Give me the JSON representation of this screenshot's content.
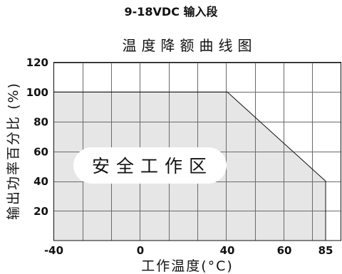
{
  "page": {
    "heading": "9-18VDC 输入段"
  },
  "chart_data": {
    "type": "area",
    "title": "温度降额曲线图",
    "xlabel": "工作温度(°C)",
    "ylabel": "输出功率百分比 (%)",
    "x_ticks": [
      -40,
      0,
      40,
      60,
      85
    ],
    "y_ticks": [
      20,
      40,
      60,
      80,
      100,
      120
    ],
    "ylim": [
      0,
      120
    ],
    "grid": true,
    "series": [
      {
        "x": [
          -40,
          40,
          85
        ],
        "y": [
          100,
          100,
          40
        ]
      }
    ],
    "annotation": "安全工作区",
    "colors": {
      "area_fill": "#e6e6e6",
      "grid": "#6a6a6a",
      "line": "#111111"
    }
  }
}
